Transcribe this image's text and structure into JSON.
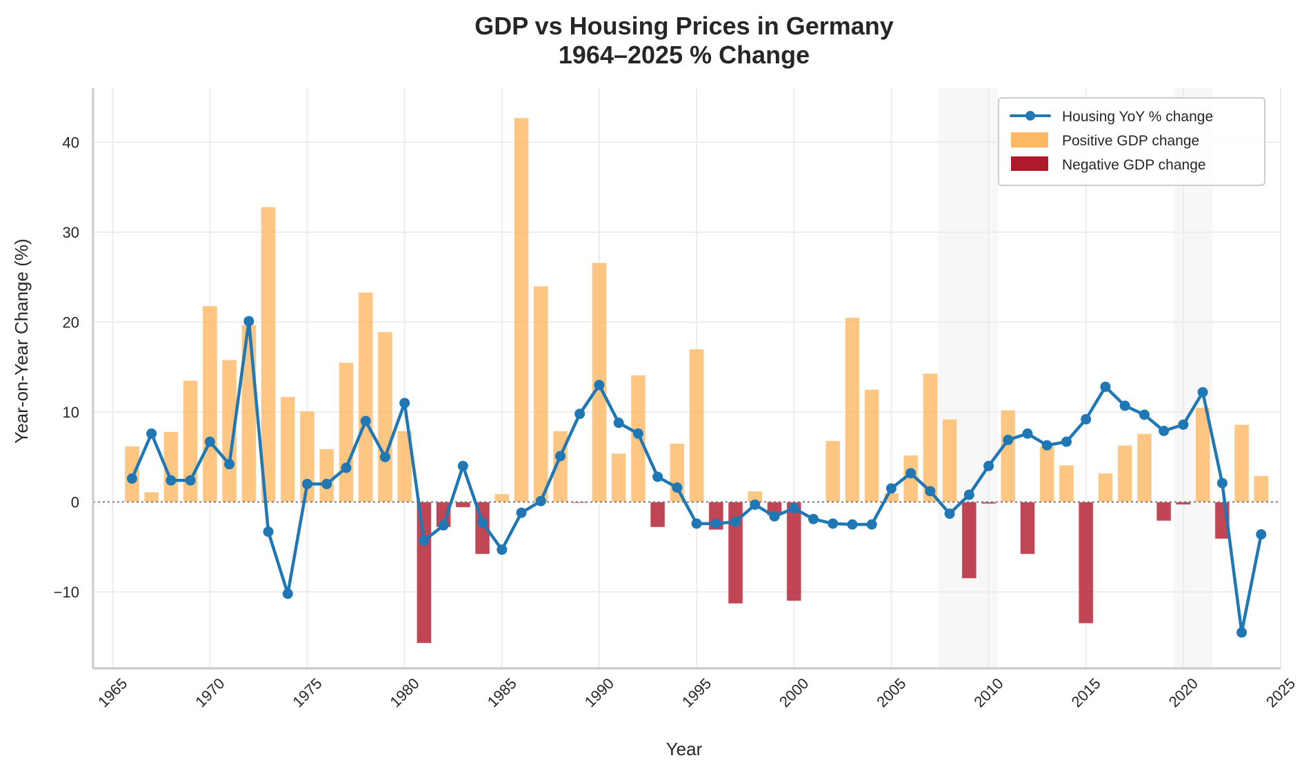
{
  "chart_data": {
    "type": "bar",
    "title": "GDP vs Housing Prices in Germany",
    "subtitle": "1964–2025 % Change",
    "xlabel": "Year",
    "ylabel": "Year-on-Year Change (%)",
    "xlim": [
      1964,
      2025
    ],
    "ylim": [
      -18.5,
      46
    ],
    "x_ticks": [
      1965,
      1970,
      1975,
      1980,
      1985,
      1990,
      1995,
      2000,
      2005,
      2010,
      2015,
      2020,
      2025
    ],
    "y_ticks": [
      -10,
      0,
      10,
      20,
      30,
      40
    ],
    "y_tick_labels": [
      "−10",
      "0",
      "10",
      "20",
      "30",
      "40"
    ],
    "grid": true,
    "zero_line": "dotted",
    "legend_position": "top-right",
    "shaded_periods": [
      {
        "start": 2007.4,
        "end": 2010.5
      },
      {
        "start": 2019.5,
        "end": 2021.5
      }
    ],
    "colors": {
      "housing": "#1f77b4",
      "positive": "#fdb863",
      "negative": "#b2182b",
      "shade": "#ececec"
    },
    "x": [
      1966,
      1967,
      1968,
      1969,
      1970,
      1971,
      1972,
      1973,
      1974,
      1975,
      1976,
      1977,
      1978,
      1979,
      1980,
      1981,
      1982,
      1983,
      1984,
      1985,
      1986,
      1987,
      1988,
      1989,
      1990,
      1991,
      1992,
      1993,
      1994,
      1995,
      1996,
      1997,
      1998,
      1999,
      2000,
      2001,
      2002,
      2003,
      2004,
      2005,
      2006,
      2007,
      2008,
      2009,
      2010,
      2011,
      2012,
      2013,
      2014,
      2015,
      2016,
      2017,
      2018,
      2019,
      2020,
      2021,
      2022,
      2023,
      2024
    ],
    "series": [
      {
        "name": "GDP YoY % change",
        "kind": "bar",
        "values": [
          6.2,
          1.1,
          7.8,
          13.5,
          21.8,
          15.8,
          19.7,
          32.8,
          11.7,
          10.1,
          5.9,
          15.5,
          23.3,
          18.9,
          7.9,
          -15.7,
          -2.8,
          -0.6,
          -5.8,
          0.9,
          42.7,
          24.0,
          7.9,
          -0.1,
          26.6,
          5.4,
          14.1,
          -2.8,
          6.5,
          17.0,
          -3.1,
          -11.3,
          1.2,
          -1.5,
          -11.0,
          0.0,
          6.8,
          20.5,
          12.5,
          1.0,
          5.2,
          14.3,
          9.2,
          -8.5,
          -0.2,
          10.2,
          -5.8,
          6.2,
          4.1,
          -13.5,
          3.2,
          6.3,
          7.6,
          -2.1,
          -0.3,
          10.5,
          -4.1,
          8.6,
          2.9
        ]
      },
      {
        "name": "Housing YoY % change",
        "kind": "line",
        "values": [
          2.6,
          7.6,
          2.4,
          2.4,
          6.7,
          4.2,
          20.1,
          -3.3,
          -10.2,
          2.0,
          2.0,
          3.8,
          9.0,
          5.0,
          11.0,
          -4.3,
          -2.6,
          4.0,
          -2.3,
          -5.3,
          -1.2,
          0.1,
          5.1,
          9.8,
          13.0,
          8.8,
          7.6,
          2.8,
          1.6,
          -2.4,
          -2.4,
          -2.2,
          -0.3,
          -1.6,
          -0.7,
          -1.9,
          -2.4,
          -2.5,
          -2.5,
          1.5,
          3.2,
          1.2,
          -1.3,
          0.8,
          4.0,
          6.9,
          7.6,
          6.3,
          6.7,
          9.2,
          12.8,
          10.7,
          9.7,
          7.9,
          8.6,
          12.2,
          2.1,
          -14.5,
          -3.6
        ]
      }
    ],
    "legend": [
      {
        "label": "Housing YoY % change",
        "type": "line-marker"
      },
      {
        "label": "Positive GDP change",
        "type": "patch-positive"
      },
      {
        "label": "Negative GDP change",
        "type": "patch-negative"
      }
    ]
  }
}
